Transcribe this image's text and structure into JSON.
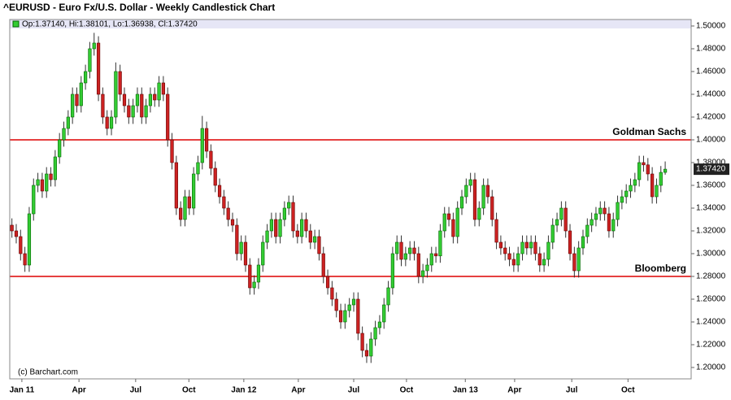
{
  "chart_data": {
    "type": "candlestick",
    "title": "^EURUSD - Euro Fx/U.S. Dollar - Weekly Candlestick Chart",
    "info": "Op:1.37140, Hi:1.38101, Lo:1.36938, Cl:1.37420",
    "credit": "(c) Barchart.com",
    "up_color": "#33cc33",
    "down_color": "#cc2222",
    "ylim": [
      1.19,
      1.5057
    ],
    "yticks": [
      {
        "value": 1.2,
        "label": "1.20000"
      },
      {
        "value": 1.22,
        "label": "1.22000"
      },
      {
        "value": 1.24,
        "label": "1.24000"
      },
      {
        "value": 1.26,
        "label": "1.26000"
      },
      {
        "value": 1.28,
        "label": "1.28000"
      },
      {
        "value": 1.3,
        "label": "1.30000"
      },
      {
        "value": 1.32,
        "label": "1.32000"
      },
      {
        "value": 1.34,
        "label": "1.34000"
      },
      {
        "value": 1.36,
        "label": "1.36000"
      },
      {
        "value": 1.38,
        "label": "1.38000"
      },
      {
        "value": 1.4,
        "label": "1.40000"
      },
      {
        "value": 1.42,
        "label": "1.42000"
      },
      {
        "value": 1.44,
        "label": "1.44000"
      },
      {
        "value": 1.46,
        "label": "1.46000"
      },
      {
        "value": 1.48,
        "label": "1.48000"
      },
      {
        "value": 1.5,
        "label": "1.50000"
      }
    ],
    "xlim": [
      -0.5,
      157
    ],
    "xticks": [
      {
        "value": 2.3,
        "label": "Jan 11"
      },
      {
        "value": 15.5,
        "label": "Apr"
      },
      {
        "value": 28.6,
        "label": "Jul"
      },
      {
        "value": 40.9,
        "label": "Oct"
      },
      {
        "value": 53.6,
        "label": "Jan 12"
      },
      {
        "value": 66.2,
        "label": "Apr"
      },
      {
        "value": 79,
        "label": "Jul"
      },
      {
        "value": 91.2,
        "label": "Oct"
      },
      {
        "value": 104.8,
        "label": "Jan 13"
      },
      {
        "value": 116.2,
        "label": "Apr"
      },
      {
        "value": 129.4,
        "label": "Jul"
      },
      {
        "value": 142.4,
        "label": "Oct"
      }
    ],
    "last_price": {
      "value": 1.3742,
      "label": "1.37420"
    },
    "annotations": [
      {
        "text": "Goldman Sachs",
        "value": 1.4,
        "color": "#dd0000"
      },
      {
        "text": "Bloomberg",
        "value": 1.28,
        "color": "#dd0000"
      }
    ],
    "open": [
      1.325,
      1.32,
      1.315,
      1.3,
      1.29,
      1.335,
      1.36,
      1.365,
      1.355,
      1.37,
      1.365,
      1.385,
      1.4,
      1.41,
      1.42,
      1.44,
      1.43,
      1.45,
      1.46,
      1.48,
      1.485,
      1.44,
      1.42,
      1.41,
      1.42,
      1.46,
      1.44,
      1.43,
      1.42,
      1.43,
      1.44,
      1.42,
      1.43,
      1.44,
      1.435,
      1.45,
      1.44,
      1.4,
      1.38,
      1.34,
      1.33,
      1.35,
      1.34,
      1.37,
      1.38,
      1.41,
      1.39,
      1.375,
      1.36,
      1.35,
      1.34,
      1.33,
      1.325,
      1.3,
      1.31,
      1.29,
      1.27,
      1.275,
      1.29,
      1.31,
      1.32,
      1.33,
      1.315,
      1.33,
      1.34,
      1.345,
      1.32,
      1.315,
      1.33,
      1.32,
      1.31,
      1.315,
      1.3,
      1.28,
      1.27,
      1.26,
      1.25,
      1.24,
      1.25,
      1.255,
      1.26,
      1.23,
      1.215,
      1.21,
      1.225,
      1.235,
      1.24,
      1.255,
      1.27,
      1.3,
      1.31,
      1.295,
      1.3,
      1.305,
      1.3,
      1.28,
      1.285,
      1.29,
      1.3,
      1.298,
      1.32,
      1.335,
      1.33,
      1.315,
      1.34,
      1.35,
      1.36,
      1.365,
      1.33,
      1.34,
      1.36,
      1.35,
      1.33,
      1.31,
      1.305,
      1.3,
      1.295,
      1.29,
      1.3,
      1.31,
      1.305,
      1.31,
      1.3,
      1.29,
      1.295,
      1.31,
      1.325,
      1.33,
      1.34,
      1.32,
      1.3,
      1.285,
      1.305,
      1.315,
      1.325,
      1.33,
      1.335,
      1.34,
      1.335,
      1.32,
      1.33,
      1.345,
      1.35,
      1.355,
      1.36,
      1.365,
      1.38,
      1.378,
      1.37,
      1.35,
      1.36,
      1.3714
    ],
    "high": [
      1.331,
      1.326,
      1.321,
      1.306,
      1.341,
      1.366,
      1.371,
      1.371,
      1.376,
      1.376,
      1.391,
      1.406,
      1.416,
      1.426,
      1.446,
      1.446,
      1.456,
      1.466,
      1.486,
      1.494,
      1.491,
      1.446,
      1.426,
      1.426,
      1.468,
      1.466,
      1.446,
      1.436,
      1.436,
      1.446,
      1.446,
      1.436,
      1.446,
      1.446,
      1.456,
      1.456,
      1.446,
      1.406,
      1.386,
      1.346,
      1.356,
      1.356,
      1.376,
      1.386,
      1.421,
      1.416,
      1.396,
      1.381,
      1.366,
      1.356,
      1.346,
      1.336,
      1.331,
      1.316,
      1.316,
      1.296,
      1.281,
      1.296,
      1.316,
      1.326,
      1.336,
      1.336,
      1.336,
      1.346,
      1.351,
      1.351,
      1.326,
      1.336,
      1.336,
      1.326,
      1.321,
      1.321,
      1.306,
      1.286,
      1.276,
      1.266,
      1.256,
      1.256,
      1.261,
      1.266,
      1.266,
      1.236,
      1.221,
      1.231,
      1.241,
      1.246,
      1.261,
      1.276,
      1.306,
      1.316,
      1.316,
      1.306,
      1.311,
      1.311,
      1.306,
      1.291,
      1.296,
      1.306,
      1.306,
      1.326,
      1.341,
      1.341,
      1.336,
      1.346,
      1.356,
      1.366,
      1.371,
      1.371,
      1.346,
      1.366,
      1.366,
      1.356,
      1.336,
      1.316,
      1.311,
      1.306,
      1.301,
      1.306,
      1.316,
      1.316,
      1.316,
      1.316,
      1.306,
      1.301,
      1.316,
      1.331,
      1.336,
      1.346,
      1.346,
      1.326,
      1.306,
      1.311,
      1.321,
      1.331,
      1.336,
      1.341,
      1.346,
      1.346,
      1.341,
      1.336,
      1.351,
      1.356,
      1.361,
      1.366,
      1.371,
      1.386,
      1.386,
      1.384,
      1.376,
      1.366,
      1.377,
      1.38101
    ],
    "low": [
      1.314,
      1.309,
      1.294,
      1.284,
      1.284,
      1.329,
      1.354,
      1.349,
      1.349,
      1.359,
      1.359,
      1.379,
      1.394,
      1.404,
      1.414,
      1.424,
      1.424,
      1.444,
      1.454,
      1.474,
      1.434,
      1.414,
      1.404,
      1.404,
      1.414,
      1.434,
      1.424,
      1.414,
      1.414,
      1.424,
      1.414,
      1.414,
      1.424,
      1.429,
      1.429,
      1.434,
      1.394,
      1.374,
      1.334,
      1.324,
      1.324,
      1.334,
      1.334,
      1.364,
      1.374,
      1.384,
      1.369,
      1.354,
      1.344,
      1.334,
      1.324,
      1.319,
      1.294,
      1.294,
      1.284,
      1.264,
      1.264,
      1.269,
      1.284,
      1.304,
      1.314,
      1.309,
      1.309,
      1.324,
      1.334,
      1.314,
      1.309,
      1.309,
      1.314,
      1.304,
      1.304,
      1.294,
      1.274,
      1.264,
      1.254,
      1.244,
      1.234,
      1.234,
      1.244,
      1.249,
      1.224,
      1.209,
      1.204,
      1.204,
      1.219,
      1.229,
      1.234,
      1.249,
      1.264,
      1.294,
      1.289,
      1.289,
      1.294,
      1.294,
      1.274,
      1.274,
      1.279,
      1.284,
      1.292,
      1.292,
      1.314,
      1.324,
      1.309,
      1.309,
      1.334,
      1.344,
      1.354,
      1.324,
      1.324,
      1.334,
      1.344,
      1.324,
      1.304,
      1.299,
      1.294,
      1.289,
      1.284,
      1.284,
      1.294,
      1.299,
      1.299,
      1.294,
      1.284,
      1.284,
      1.289,
      1.304,
      1.319,
      1.324,
      1.314,
      1.294,
      1.279,
      1.279,
      1.299,
      1.309,
      1.319,
      1.324,
      1.329,
      1.329,
      1.314,
      1.314,
      1.324,
      1.339,
      1.344,
      1.349,
      1.354,
      1.359,
      1.372,
      1.364,
      1.344,
      1.344,
      1.354,
      1.36938
    ],
    "close": [
      1.32,
      1.315,
      1.3,
      1.29,
      1.335,
      1.36,
      1.365,
      1.355,
      1.37,
      1.365,
      1.385,
      1.4,
      1.41,
      1.42,
      1.44,
      1.43,
      1.45,
      1.46,
      1.48,
      1.485,
      1.44,
      1.42,
      1.41,
      1.42,
      1.46,
      1.44,
      1.43,
      1.42,
      1.43,
      1.44,
      1.42,
      1.43,
      1.44,
      1.435,
      1.45,
      1.44,
      1.4,
      1.38,
      1.34,
      1.33,
      1.35,
      1.34,
      1.37,
      1.38,
      1.41,
      1.39,
      1.375,
      1.36,
      1.35,
      1.34,
      1.33,
      1.325,
      1.3,
      1.31,
      1.29,
      1.27,
      1.275,
      1.29,
      1.31,
      1.32,
      1.33,
      1.315,
      1.33,
      1.34,
      1.345,
      1.32,
      1.315,
      1.33,
      1.32,
      1.31,
      1.315,
      1.3,
      1.28,
      1.27,
      1.26,
      1.25,
      1.24,
      1.25,
      1.255,
      1.26,
      1.23,
      1.215,
      1.21,
      1.225,
      1.235,
      1.24,
      1.255,
      1.27,
      1.3,
      1.31,
      1.295,
      1.3,
      1.305,
      1.3,
      1.28,
      1.285,
      1.29,
      1.3,
      1.298,
      1.32,
      1.335,
      1.33,
      1.315,
      1.34,
      1.35,
      1.36,
      1.365,
      1.33,
      1.34,
      1.36,
      1.35,
      1.33,
      1.31,
      1.305,
      1.3,
      1.295,
      1.29,
      1.3,
      1.31,
      1.305,
      1.31,
      1.3,
      1.29,
      1.295,
      1.31,
      1.325,
      1.33,
      1.34,
      1.32,
      1.3,
      1.285,
      1.305,
      1.315,
      1.325,
      1.33,
      1.335,
      1.34,
      1.335,
      1.32,
      1.33,
      1.345,
      1.35,
      1.355,
      1.36,
      1.365,
      1.38,
      1.378,
      1.37,
      1.35,
      1.36,
      1.3714,
      1.3742
    ]
  }
}
